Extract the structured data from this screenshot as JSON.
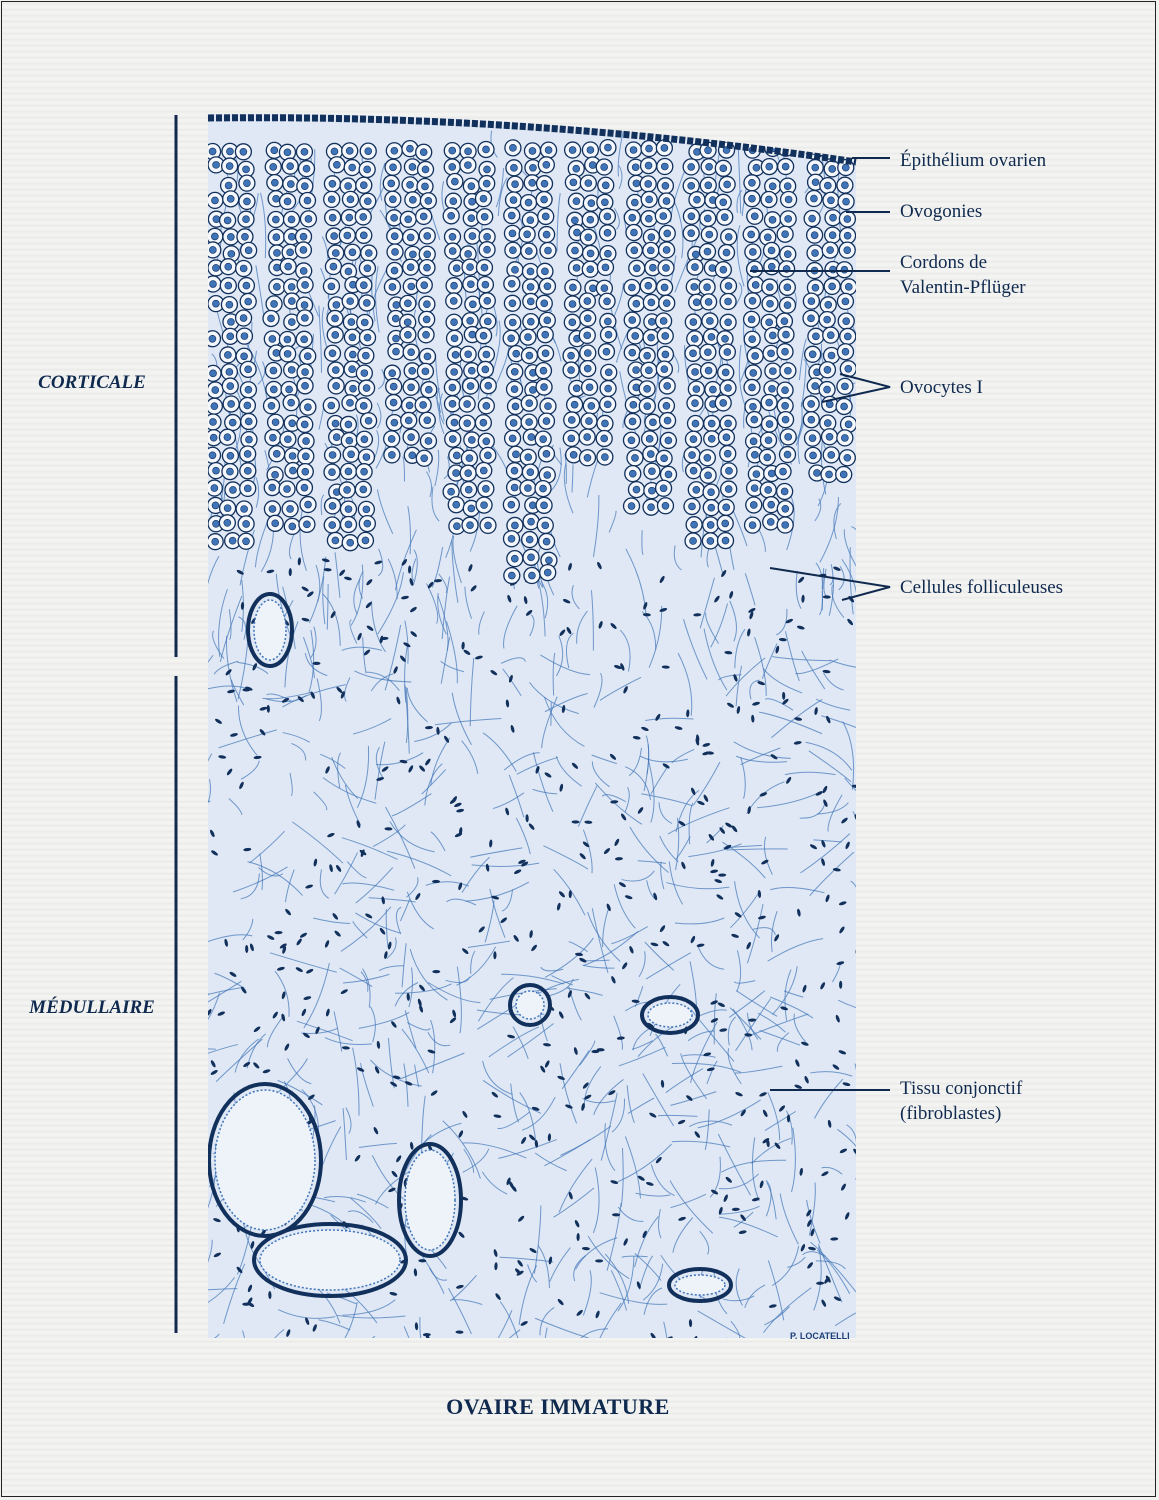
{
  "title": "OVAIRE IMMATURE",
  "regions": {
    "cortical": "CORTICALE",
    "medullary": "MÉDULLAIRE"
  },
  "labels": {
    "epithelium": "Épithélium ovarien",
    "ovogonies": "Ovogonies",
    "cordons_line1": "Cordons de",
    "cordons_line2": "Valentin-Pflüger",
    "ovocytes": "Ovocytes I",
    "follicular": "Cellules folliculeuses",
    "tissue_line1": "Tissu conjonctif",
    "tissue_line2": "(fibroblastes)"
  },
  "signature": "P. LOCATELLI",
  "colors": {
    "ink": "#0f2a4e",
    "tissue_blue": "#3f74b8",
    "tissue_dark": "#12305c"
  }
}
